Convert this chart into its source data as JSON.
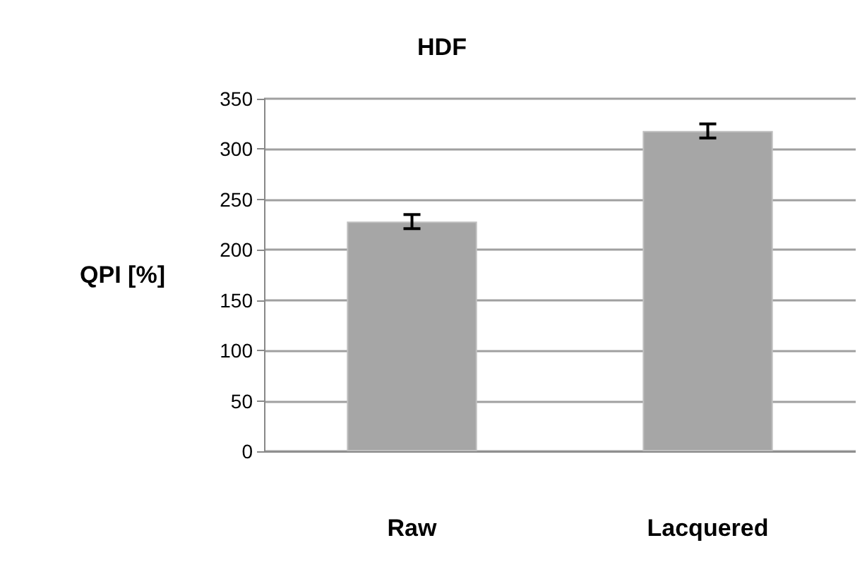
{
  "chart_data": {
    "type": "bar",
    "title": "HDF",
    "ylabel": "QPI [%]",
    "categories": [
      "Raw",
      "Lacquered"
    ],
    "values": [
      228,
      318
    ],
    "errors": [
      7,
      7
    ],
    "color": "#a6a6a6",
    "ylim": [
      0,
      350
    ],
    "yticks": [
      0,
      50,
      100,
      150,
      200,
      250,
      300,
      350
    ],
    "grid": "y"
  }
}
